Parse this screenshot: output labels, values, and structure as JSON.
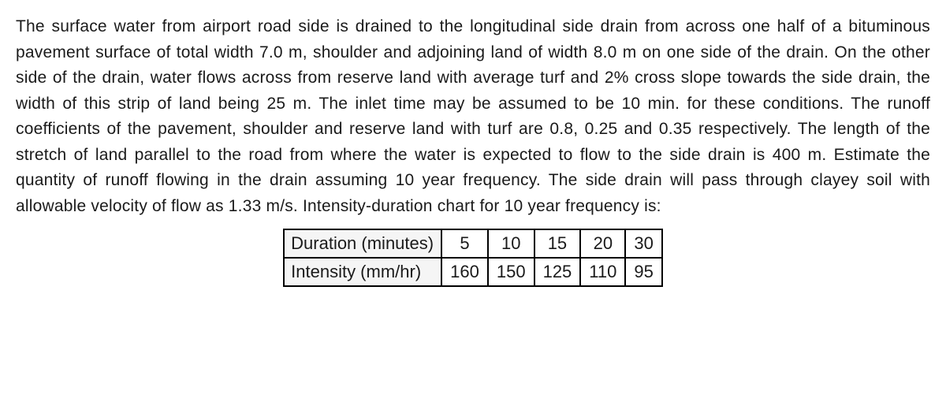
{
  "problem": {
    "text": "The surface water from airport road side is drained to the longitudinal side drain from across one half of a bituminous pavement surface of total width 7.0 m, shoulder and adjoining land of width 8.0 m on one side of the drain. On the other side of the drain, water flows across from reserve land with average turf and 2% cross slope towards the side drain, the width of this strip of land being 25 m. The inlet time may be assumed to be 10 min. for these conditions. The runoff coefficients of the pavement, shoulder and reserve land with turf are 0.8, 0.25 and 0.35 respectively. The length of the stretch of land parallel to the road from where the water is expected to flow to the side drain is 400 m. Estimate the quantity of runoff flowing in the drain assuming 10 year frequency. The side drain will pass through clayey soil with allowable velocity of flow as 1.33 m/s. Intensity-duration chart for 10 year frequency is:"
  },
  "table": {
    "type": "table",
    "border_color": "#000000",
    "border_width": 2,
    "background_color": "#ffffff",
    "header_bg_color": "#f5f5f5",
    "text_color": "#1a1a1a",
    "font_size": 22,
    "rows": [
      {
        "header": "Duration (minutes)",
        "values": [
          "5",
          "10",
          "15",
          "20",
          "30"
        ]
      },
      {
        "header": "Intensity (mm/hr)",
        "values": [
          "160",
          "150",
          "125",
          "110",
          "95"
        ]
      }
    ]
  }
}
